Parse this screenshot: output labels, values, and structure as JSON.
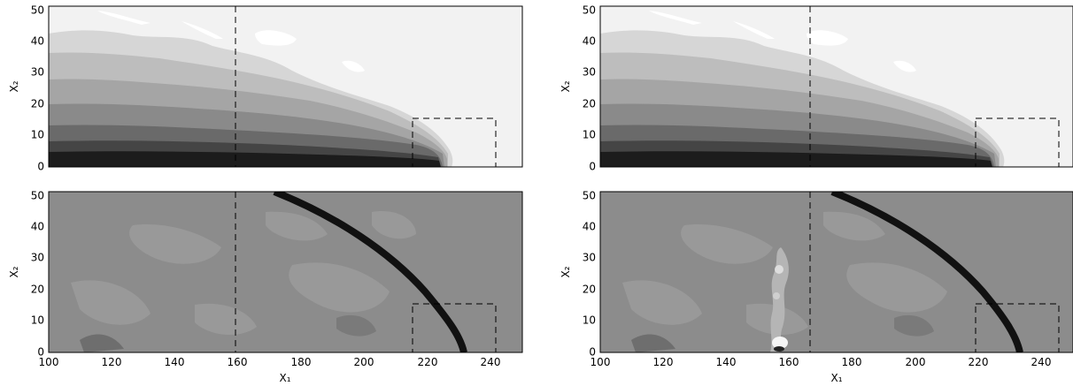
{
  "panels": [
    {
      "id": "top-left",
      "ylabel": "X₂",
      "yticks": [
        "0",
        "10",
        "20",
        "30",
        "40",
        "50"
      ],
      "xlim": [
        100,
        250
      ],
      "ylim": [
        0,
        51
      ],
      "style": "density",
      "vline_x": 160,
      "box": [
        215,
        241,
        0,
        15
      ]
    },
    {
      "id": "top-right",
      "ylabel": "X₂",
      "yticks": [
        "0",
        "10",
        "20",
        "30",
        "40",
        "50"
      ],
      "xlim": [
        100,
        250
      ],
      "ylim": [
        0,
        51
      ],
      "style": "density",
      "vline_x": 167,
      "box": [
        218,
        244,
        0,
        15
      ]
    },
    {
      "id": "bottom-left",
      "ylabel": "X₂",
      "xlabel": "X₁",
      "yticks": [
        "0",
        "10",
        "20",
        "30",
        "40",
        "50"
      ],
      "xticks": [
        "100",
        "120",
        "140",
        "160",
        "180",
        "200",
        "220",
        "240"
      ],
      "xlim": [
        100,
        250
      ],
      "ylim": [
        0,
        51
      ],
      "style": "field",
      "vline_x": 160,
      "box": [
        215,
        241,
        0,
        15
      ],
      "shock_x_at_base": 231
    },
    {
      "id": "bottom-right",
      "ylabel": "X₂",
      "xlabel": "X₁",
      "yticks": [
        "0",
        "10",
        "20",
        "30",
        "40",
        "50"
      ],
      "xticks": [
        "100",
        "120",
        "140",
        "160",
        "180",
        "200",
        "220",
        "240"
      ],
      "xlim": [
        100,
        250
      ],
      "ylim": [
        0,
        51
      ],
      "style": "field",
      "vline_x": 167,
      "box": [
        218,
        244,
        0,
        15
      ],
      "shock_x_at_base": 233
    }
  ]
}
